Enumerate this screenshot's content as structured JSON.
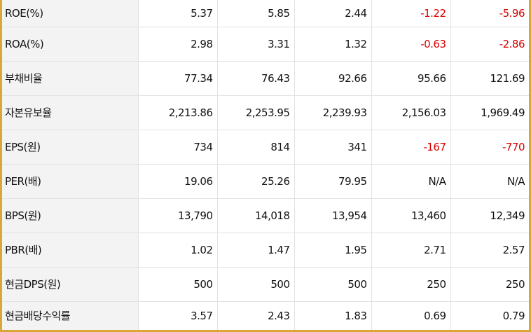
{
  "table": {
    "rows": [
      [
        "ROE(%)",
        "5.37",
        "5.85",
        "2.44",
        "-1.22",
        "-5.96"
      ],
      [
        "ROA(%)",
        "2.98",
        "3.31",
        "1.32",
        "-0.63",
        "-2.86"
      ],
      [
        "부채비율",
        "77.34",
        "76.43",
        "92.66",
        "95.66",
        "121.69"
      ],
      [
        "자본유보율",
        "2,213.86",
        "2,253.95",
        "2,239.93",
        "2,156.03",
        "1,969.49"
      ],
      [
        "EPS(원)",
        "734",
        "814",
        "341",
        "-167",
        "-770"
      ],
      [
        "PER(배)",
        "19.06",
        "25.26",
        "79.95",
        "N/A",
        "N/A"
      ],
      [
        "BPS(원)",
        "13,790",
        "14,018",
        "13,954",
        "13,460",
        "12,349"
      ],
      [
        "PBR(배)",
        "1.02",
        "1.47",
        "1.95",
        "2.71",
        "2.57"
      ],
      [
        "현금DPS(원)",
        "500",
        "500",
        "500",
        "250",
        "250"
      ],
      [
        "현금배당수익률",
        "3.57",
        "2.43",
        "1.83",
        "0.69",
        "0.79"
      ]
    ]
  }
}
